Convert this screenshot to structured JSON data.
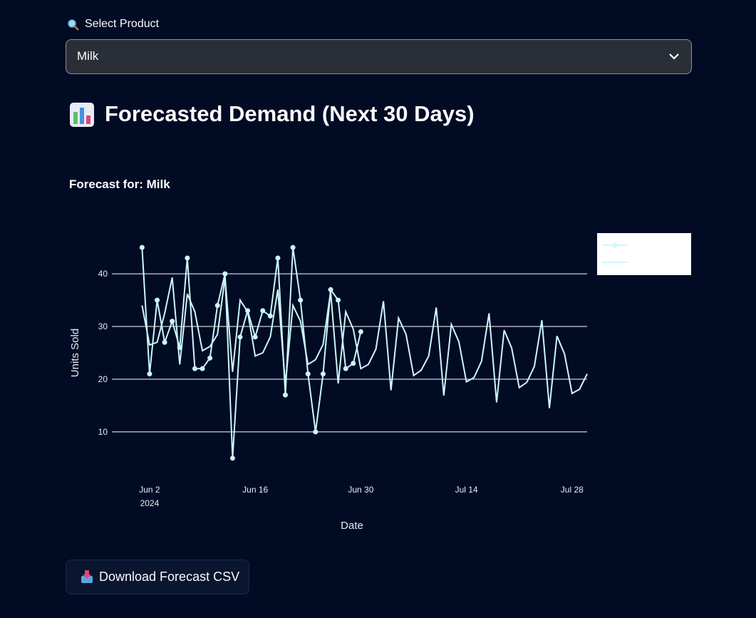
{
  "select": {
    "label": "Select Product",
    "value": "Milk"
  },
  "header": {
    "title": "Forecasted Demand (Next 30 Days)"
  },
  "chart_data": {
    "type": "line",
    "title": "Forecast for: Milk",
    "x_label": "Date",
    "y_label": "Units Sold",
    "xlim": [
      "2024-05-28",
      "2024-07-30"
    ],
    "ylim": [
      2,
      48
    ],
    "yticks": [
      10,
      20,
      30,
      40
    ],
    "xticks": [
      {
        "value": "2024-06-02",
        "label": "Jun 2\n2024"
      },
      {
        "value": "2024-06-16",
        "label": "Jun 16"
      },
      {
        "value": "2024-06-30",
        "label": "Jun 30"
      },
      {
        "value": "2024-07-14",
        "label": "Jul 14"
      },
      {
        "value": "2024-07-28",
        "label": "Jul 28"
      }
    ],
    "grid": true,
    "legend": "right",
    "series": [
      {
        "color": "#ccf7fb",
        "markers": true,
        "x": [
          "2024-06-01",
          "2024-06-02",
          "2024-06-03",
          "2024-06-04",
          "2024-06-05",
          "2024-06-06",
          "2024-06-07",
          "2024-06-08",
          "2024-06-09",
          "2024-06-10",
          "2024-06-11",
          "2024-06-12",
          "2024-06-13",
          "2024-06-14",
          "2024-06-15",
          "2024-06-16",
          "2024-06-17",
          "2024-06-18",
          "2024-06-19",
          "2024-06-20",
          "2024-06-21",
          "2024-06-22",
          "2024-06-23",
          "2024-06-24",
          "2024-06-25",
          "2024-06-26",
          "2024-06-27",
          "2024-06-28",
          "2024-06-29",
          "2024-06-30"
        ],
        "values": [
          45,
          21,
          35,
          27,
          31,
          26,
          43,
          22,
          22,
          24,
          34,
          40,
          5,
          28,
          33,
          28,
          33,
          32,
          43,
          17,
          45,
          35,
          21,
          10,
          21,
          37,
          35,
          22,
          23,
          29
        ]
      },
      {
        "color": "#ccf7fb",
        "markers": false,
        "x": [
          "2024-06-01",
          "2024-06-02",
          "2024-06-03",
          "2024-06-04",
          "2024-06-05",
          "2024-06-06",
          "2024-06-07",
          "2024-06-08",
          "2024-06-09",
          "2024-06-10",
          "2024-06-11",
          "2024-06-12",
          "2024-06-13",
          "2024-06-14",
          "2024-06-15",
          "2024-06-16",
          "2024-06-17",
          "2024-06-18",
          "2024-06-19",
          "2024-06-20",
          "2024-06-21",
          "2024-06-22",
          "2024-06-23",
          "2024-06-24",
          "2024-06-25",
          "2024-06-26",
          "2024-06-27",
          "2024-06-28",
          "2024-06-29",
          "2024-06-30",
          "2024-07-01",
          "2024-07-02",
          "2024-07-03",
          "2024-07-04",
          "2024-07-05",
          "2024-07-06",
          "2024-07-07",
          "2024-07-08",
          "2024-07-09",
          "2024-07-10",
          "2024-07-11",
          "2024-07-12",
          "2024-07-13",
          "2024-07-14",
          "2024-07-15",
          "2024-07-16",
          "2024-07-17",
          "2024-07-18",
          "2024-07-19",
          "2024-07-20",
          "2024-07-21",
          "2024-07-22",
          "2024-07-23",
          "2024-07-24",
          "2024-07-25",
          "2024-07-26",
          "2024-07-27",
          "2024-07-28",
          "2024-07-29",
          "2024-07-30"
        ],
        "values": [
          34,
          26.5,
          27,
          32.5,
          39.3,
          22.8,
          36.2,
          32.8,
          25.4,
          26.2,
          28.5,
          39.3,
          21.4,
          35,
          32.8,
          24.4,
          25,
          28,
          37,
          19,
          34,
          31,
          22.8,
          23.7,
          26.6,
          36.6,
          19.2,
          32.8,
          29.5,
          22,
          22.8,
          25.7,
          34.8,
          17.9,
          31.6,
          28.5,
          20.7,
          21.7,
          24.4,
          33.6,
          16.9,
          30.4,
          27.1,
          19.5,
          20.3,
          23.4,
          32.5,
          15.6,
          29.3,
          25.9,
          18.4,
          19.4,
          22.4,
          31.2,
          14.5,
          28.2,
          24.8,
          17.3,
          18.1,
          21
        ]
      }
    ]
  },
  "button": {
    "label": "Download Forecast CSV"
  }
}
